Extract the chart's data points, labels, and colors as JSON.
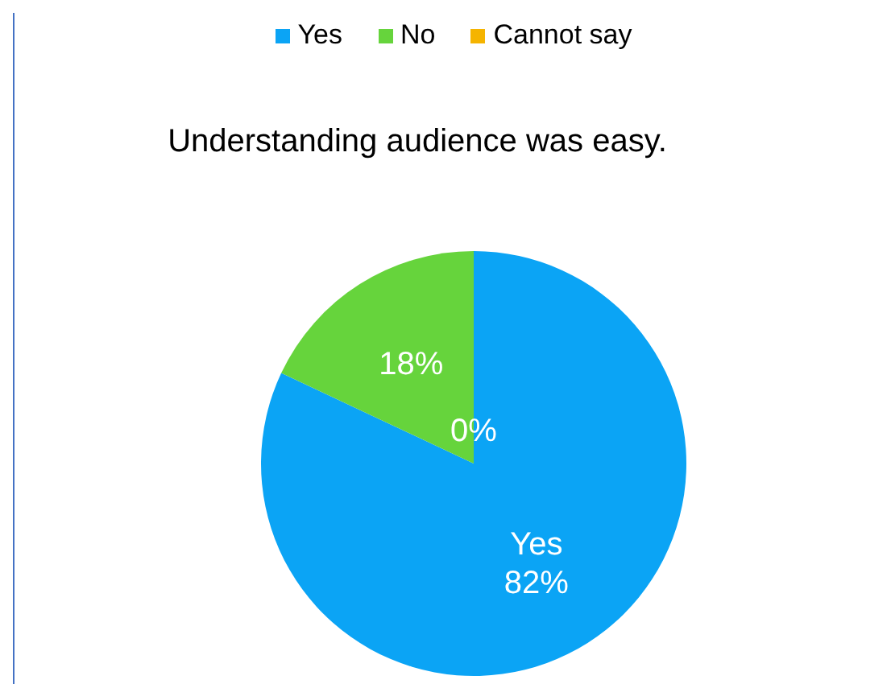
{
  "chart_data": {
    "type": "pie",
    "title": "Understanding audience was easy.",
    "categories": [
      "Yes",
      "No",
      "Cannot say"
    ],
    "values": [
      82,
      18,
      0
    ],
    "colors": [
      "#0ba4f5",
      "#66d43c",
      "#f5b400"
    ],
    "value_labels": [
      "Yes\n82%",
      "18%",
      "0%"
    ],
    "legend": "top"
  }
}
